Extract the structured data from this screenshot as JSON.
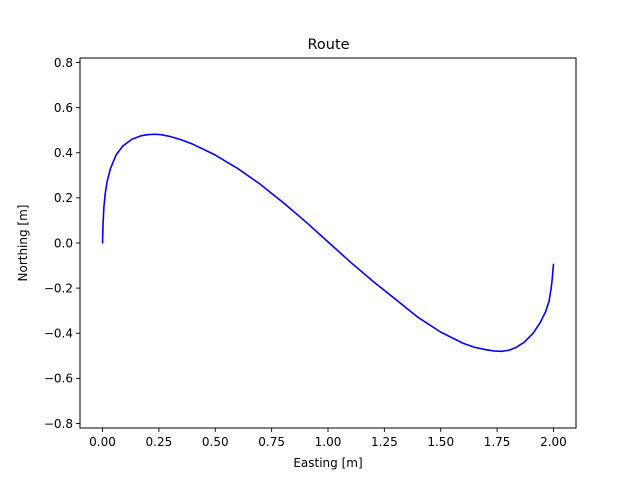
{
  "chart_data": {
    "type": "line",
    "title": "Route",
    "xlabel": "Easting [m]",
    "ylabel": "Northing [m]",
    "xlim": [
      -0.1,
      2.1
    ],
    "ylim": [
      -0.82,
      0.82
    ],
    "grid": false,
    "legend": "none",
    "x_ticks": [
      {
        "value": 0.0,
        "label": "0.00"
      },
      {
        "value": 0.25,
        "label": "0.25"
      },
      {
        "value": 0.5,
        "label": "0.50"
      },
      {
        "value": 0.75,
        "label": "0.75"
      },
      {
        "value": 1.0,
        "label": "1.00"
      },
      {
        "value": 1.25,
        "label": "1.25"
      },
      {
        "value": 1.5,
        "label": "1.50"
      },
      {
        "value": 1.75,
        "label": "1.75"
      },
      {
        "value": 2.0,
        "label": "2.00"
      }
    ],
    "y_ticks": [
      {
        "value": 0.8,
        "label": "0.8"
      },
      {
        "value": 0.6,
        "label": "0.6"
      },
      {
        "value": 0.4,
        "label": "0.4"
      },
      {
        "value": 0.2,
        "label": "0.2"
      },
      {
        "value": 0.0,
        "label": "0.0"
      },
      {
        "value": -0.2,
        "label": "−0.2"
      },
      {
        "value": -0.4,
        "label": "−0.4"
      },
      {
        "value": -0.6,
        "label": "−0.6"
      },
      {
        "value": -0.8,
        "label": "−0.8"
      }
    ],
    "series": [
      {
        "color": "#0000ff",
        "x": [
          0.0,
          0.002,
          0.006,
          0.012,
          0.02,
          0.035,
          0.06,
          0.09,
          0.13,
          0.17,
          0.2,
          0.23,
          0.26,
          0.3,
          0.35,
          0.4,
          0.5,
          0.6,
          0.7,
          0.8,
          0.9,
          1.0,
          1.1,
          1.2,
          1.3,
          1.4,
          1.5,
          1.6,
          1.65,
          1.7,
          1.74,
          1.77,
          1.8,
          1.83,
          1.87,
          1.91,
          1.94,
          1.965,
          1.98,
          1.99,
          1.995,
          2.0
        ],
        "y": [
          0.0,
          0.08,
          0.16,
          0.22,
          0.27,
          0.33,
          0.39,
          0.43,
          0.46,
          0.475,
          0.48,
          0.482,
          0.48,
          0.472,
          0.457,
          0.438,
          0.39,
          0.33,
          0.26,
          0.18,
          0.095,
          0.005,
          -0.085,
          -0.17,
          -0.25,
          -0.33,
          -0.395,
          -0.445,
          -0.462,
          -0.473,
          -0.479,
          -0.48,
          -0.476,
          -0.465,
          -0.44,
          -0.4,
          -0.355,
          -0.305,
          -0.26,
          -0.2,
          -0.155,
          -0.095
        ]
      }
    ]
  }
}
